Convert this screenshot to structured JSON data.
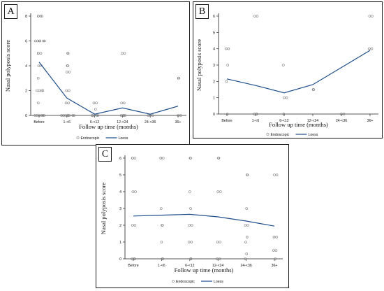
{
  "chart_data": [
    {
      "panel": "A",
      "type": "scatter",
      "ylabel": "Nasal polyposis score",
      "xlabel": "Follow up time (months)",
      "categories": [
        "Before",
        "1-<6",
        "6-<12",
        "12-<24",
        "24-<36",
        "36+"
      ],
      "ylim": [
        0,
        8
      ],
      "yticks": [
        0,
        2,
        4,
        6,
        8
      ],
      "legend": [
        "Endoscopic",
        "Loess"
      ],
      "legend_position": "bottom",
      "series": [
        {
          "name": "Endoscopic",
          "kind": "points",
          "points": [
            {
              "x": 0,
              "y": 8
            },
            {
              "x": 0,
              "y": 8
            },
            {
              "x": 0,
              "y": 8
            },
            {
              "x": 0,
              "y": 8
            },
            {
              "x": 0,
              "y": 6
            },
            {
              "x": 0,
              "y": 6
            },
            {
              "x": 0,
              "y": 6
            },
            {
              "x": 0,
              "y": 6
            },
            {
              "x": 0,
              "y": 6
            },
            {
              "x": 0,
              "y": 6
            },
            {
              "x": 0,
              "y": 5
            },
            {
              "x": 0,
              "y": 5
            },
            {
              "x": 0,
              "y": 5
            },
            {
              "x": 0,
              "y": 4
            },
            {
              "x": 0,
              "y": 4
            },
            {
              "x": 0,
              "y": 3
            },
            {
              "x": 0,
              "y": 2
            },
            {
              "x": 0,
              "y": 2
            },
            {
              "x": 0,
              "y": 2
            },
            {
              "x": 0,
              "y": 2
            },
            {
              "x": 0,
              "y": 1
            },
            {
              "x": 0,
              "y": 0
            },
            {
              "x": 0,
              "y": 0
            },
            {
              "x": 0,
              "y": 0
            },
            {
              "x": 0,
              "y": 0
            },
            {
              "x": 0,
              "y": 0
            },
            {
              "x": 0,
              "y": 0
            },
            {
              "x": 1,
              "y": 5
            },
            {
              "x": 1,
              "y": 5
            },
            {
              "x": 1,
              "y": 4
            },
            {
              "x": 1,
              "y": 4
            },
            {
              "x": 1,
              "y": 3.5
            },
            {
              "x": 1,
              "y": 3.5
            },
            {
              "x": 1,
              "y": 2
            },
            {
              "x": 1,
              "y": 2
            },
            {
              "x": 1,
              "y": 1
            },
            {
              "x": 1,
              "y": 1
            },
            {
              "x": 1,
              "y": 0
            },
            {
              "x": 1,
              "y": 0
            },
            {
              "x": 1,
              "y": 0
            },
            {
              "x": 1,
              "y": 0
            },
            {
              "x": 1,
              "y": 0
            },
            {
              "x": 1,
              "y": 0
            },
            {
              "x": 1,
              "y": 0
            },
            {
              "x": 1,
              "y": 0
            },
            {
              "x": 2,
              "y": 1
            },
            {
              "x": 2,
              "y": 1
            },
            {
              "x": 2,
              "y": 0.5
            },
            {
              "x": 2,
              "y": 0
            },
            {
              "x": 2,
              "y": 0
            },
            {
              "x": 2,
              "y": 0
            },
            {
              "x": 2,
              "y": 0
            },
            {
              "x": 2,
              "y": 0
            },
            {
              "x": 3,
              "y": 5
            },
            {
              "x": 3,
              "y": 5
            },
            {
              "x": 3,
              "y": 1
            },
            {
              "x": 3,
              "y": 1
            },
            {
              "x": 3,
              "y": 0
            },
            {
              "x": 3,
              "y": 0
            },
            {
              "x": 3,
              "y": 0
            },
            {
              "x": 3,
              "y": 0
            },
            {
              "x": 4,
              "y": 0
            },
            {
              "x": 4,
              "y": 0
            },
            {
              "x": 4,
              "y": 0
            },
            {
              "x": 5,
              "y": 3
            },
            {
              "x": 5,
              "y": 3
            },
            {
              "x": 5,
              "y": 0
            },
            {
              "x": 5,
              "y": 0
            }
          ]
        },
        {
          "name": "Loess",
          "kind": "line",
          "points": [
            {
              "x": 0,
              "y": 4.3
            },
            {
              "x": 1,
              "y": 1.4
            },
            {
              "x": 2,
              "y": 0.1
            },
            {
              "x": 3,
              "y": 0.6
            },
            {
              "x": 4,
              "y": 0.1
            },
            {
              "x": 5,
              "y": 0.75
            }
          ]
        }
      ]
    },
    {
      "panel": "B",
      "type": "scatter",
      "ylabel": "Nasal polyposis score",
      "xlabel": "Follow up time (months)",
      "categories": [
        "Before",
        "1-<6",
        "6-<12",
        "12-<24",
        "24-<36",
        "36+"
      ],
      "ylim": [
        0,
        6
      ],
      "yticks": [
        0,
        1,
        2,
        3,
        4,
        5,
        6
      ],
      "legend": [
        "Endoscopic",
        "Loess"
      ],
      "legend_position": "bottom",
      "series": [
        {
          "name": "Endoscopic",
          "kind": "points",
          "points": [
            {
              "x": 0,
              "y": 4
            },
            {
              "x": 0,
              "y": 4
            },
            {
              "x": 0,
              "y": 3
            },
            {
              "x": 0,
              "y": 2
            },
            {
              "x": 0,
              "y": 0
            },
            {
              "x": 1,
              "y": 6
            },
            {
              "x": 1,
              "y": 6
            },
            {
              "x": 1,
              "y": 0
            },
            {
              "x": 1,
              "y": 0
            },
            {
              "x": 1,
              "y": 0
            },
            {
              "x": 2,
              "y": 3
            },
            {
              "x": 2,
              "y": 1
            },
            {
              "x": 2,
              "y": 1
            },
            {
              "x": 2,
              "y": 0
            },
            {
              "x": 3,
              "y": 1.5
            },
            {
              "x": 3,
              "y": 1.5
            },
            {
              "x": 4,
              "y": 0
            },
            {
              "x": 4,
              "y": 0
            },
            {
              "x": 5,
              "y": 6
            },
            {
              "x": 5,
              "y": 6
            },
            {
              "x": 5,
              "y": 4
            },
            {
              "x": 5,
              "y": 4
            }
          ]
        },
        {
          "name": "Loess",
          "kind": "line",
          "points": [
            {
              "x": 0,
              "y": 2.15
            },
            {
              "x": 1,
              "y": 1.75
            },
            {
              "x": 2,
              "y": 1.3
            },
            {
              "x": 3,
              "y": 1.8
            },
            {
              "x": 4,
              "y": 2.85
            },
            {
              "x": 5,
              "y": 3.9
            }
          ]
        }
      ]
    },
    {
      "panel": "C",
      "type": "scatter",
      "ylabel": "Nasal polyposis score",
      "xlabel": "Follow up time (months)",
      "categories": [
        "Before",
        "1-<6",
        "6-<12",
        "12-<24",
        "24-<36",
        "36+"
      ],
      "ylim": [
        0,
        6
      ],
      "yticks": [
        0,
        1,
        2,
        3,
        4,
        5,
        6
      ],
      "legend": [
        "Endoscopic",
        "Loess"
      ],
      "legend_position": "bottom",
      "series": [
        {
          "name": "Endoscopic",
          "kind": "points",
          "points": [
            {
              "x": 0,
              "y": 6
            },
            {
              "x": 0,
              "y": 6
            },
            {
              "x": 0,
              "y": 6
            },
            {
              "x": 0,
              "y": 4
            },
            {
              "x": 0,
              "y": 4
            },
            {
              "x": 0,
              "y": 2
            },
            {
              "x": 0,
              "y": 2
            },
            {
              "x": 0,
              "y": 0
            },
            {
              "x": 0,
              "y": 0
            },
            {
              "x": 0,
              "y": 0
            },
            {
              "x": 1,
              "y": 6
            },
            {
              "x": 1,
              "y": 6
            },
            {
              "x": 1,
              "y": 6
            },
            {
              "x": 1,
              "y": 3
            },
            {
              "x": 1,
              "y": 2
            },
            {
              "x": 1,
              "y": 2
            },
            {
              "x": 1,
              "y": 1
            },
            {
              "x": 1,
              "y": 0
            },
            {
              "x": 1,
              "y": 0
            },
            {
              "x": 2,
              "y": 6
            },
            {
              "x": 2,
              "y": 6
            },
            {
              "x": 2,
              "y": 4
            },
            {
              "x": 2,
              "y": 3
            },
            {
              "x": 2,
              "y": 2
            },
            {
              "x": 2,
              "y": 2
            },
            {
              "x": 2,
              "y": 1
            },
            {
              "x": 2,
              "y": 1
            },
            {
              "x": 2,
              "y": 0
            },
            {
              "x": 2,
              "y": 0
            },
            {
              "x": 3,
              "y": 6
            },
            {
              "x": 3,
              "y": 6
            },
            {
              "x": 3,
              "y": 4
            },
            {
              "x": 3,
              "y": 4
            },
            {
              "x": 3,
              "y": 1
            },
            {
              "x": 3,
              "y": 1
            },
            {
              "x": 3,
              "y": 0
            },
            {
              "x": 3,
              "y": 0
            },
            {
              "x": 4,
              "y": 5
            },
            {
              "x": 4,
              "y": 5
            },
            {
              "x": 4,
              "y": 3
            },
            {
              "x": 4,
              "y": 2
            },
            {
              "x": 4,
              "y": 2
            },
            {
              "x": 4,
              "y": 1.3
            },
            {
              "x": 4,
              "y": 1
            },
            {
              "x": 4,
              "y": 0.3
            },
            {
              "x": 4,
              "y": 0
            },
            {
              "x": 5,
              "y": 5
            },
            {
              "x": 5,
              "y": 5
            },
            {
              "x": 5,
              "y": 1.3
            },
            {
              "x": 5,
              "y": 1.3
            },
            {
              "x": 5,
              "y": 0.5
            },
            {
              "x": 5,
              "y": 0.5
            },
            {
              "x": 5,
              "y": 0
            }
          ]
        },
        {
          "name": "Loess",
          "kind": "line",
          "points": [
            {
              "x": 0,
              "y": 2.55
            },
            {
              "x": 1,
              "y": 2.6
            },
            {
              "x": 2,
              "y": 2.65
            },
            {
              "x": 3,
              "y": 2.5
            },
            {
              "x": 4,
              "y": 2.25
            },
            {
              "x": 5,
              "y": 1.95
            }
          ]
        }
      ]
    }
  ],
  "colors": {
    "points": "#7a7a7a",
    "loess": "#1f4e8c",
    "axis": "#222222",
    "panel_border": "#1b1b1b"
  }
}
